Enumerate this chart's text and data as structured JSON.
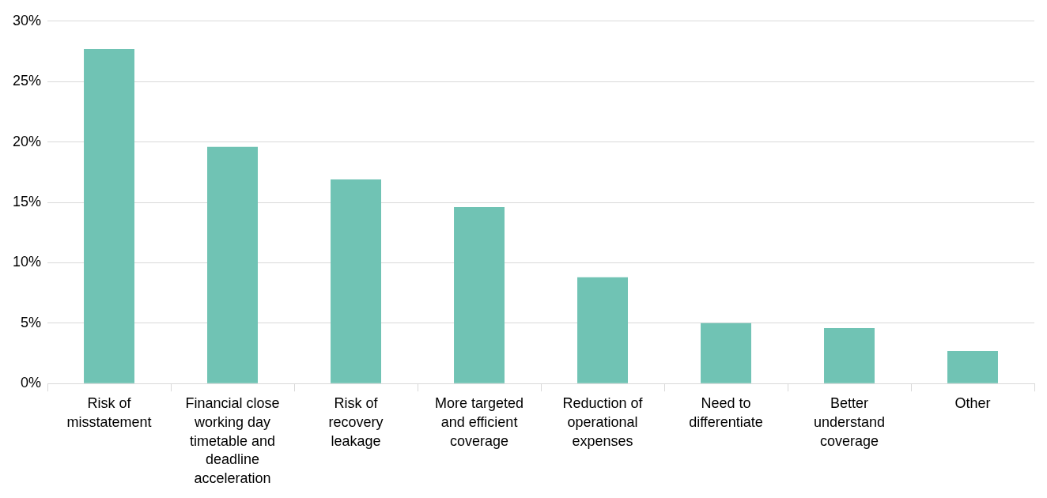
{
  "chart_data": {
    "type": "bar",
    "categories": [
      "Risk of misstatement",
      "Financial close working day timetable and deadline acceleration",
      "Risk of recovery leakage",
      "More targeted and efficient coverage",
      "Reduction of operational expenses",
      "Need to differentiate",
      "Better understand coverage",
      "Other"
    ],
    "values": [
      27.7,
      19.6,
      16.9,
      14.6,
      8.8,
      5.0,
      4.6,
      2.7
    ],
    "color": "#70c3b4",
    "ylim": [
      0,
      30
    ],
    "yticks": [
      {
        "value": 0,
        "label": "0%"
      },
      {
        "value": 5,
        "label": "5%"
      },
      {
        "value": 10,
        "label": "10%"
      },
      {
        "value": 15,
        "label": "15%"
      },
      {
        "value": 20,
        "label": "20%"
      },
      {
        "value": 25,
        "label": "25%"
      },
      {
        "value": 30,
        "label": "30%"
      }
    ],
    "grid": "y"
  }
}
